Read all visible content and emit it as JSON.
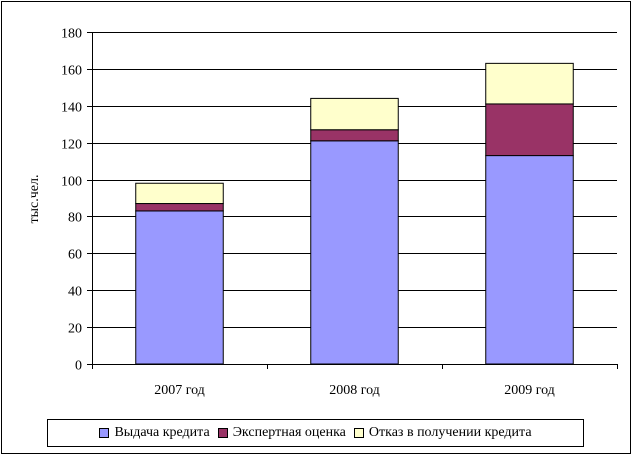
{
  "chart_data": {
    "type": "bar",
    "stacked": true,
    "categories": [
      "2007 год",
      "2008 год",
      "2009 год"
    ],
    "series": [
      {
        "name": "Выдача кредита",
        "values": [
          83,
          121,
          113
        ],
        "color": "#9999ff"
      },
      {
        "name": "Экспертная оценка",
        "values": [
          4,
          6,
          28
        ],
        "color": "#993366"
      },
      {
        "name": "Отказ в получении кредита",
        "values": [
          11,
          17,
          22
        ],
        "color": "#ffffcc"
      }
    ],
    "ylabel": "тыс.чел.",
    "ylim": [
      0,
      180
    ],
    "yticks": [
      0,
      20,
      40,
      60,
      80,
      100,
      120,
      140,
      160,
      180
    ],
    "yticks_labels": [
      "0",
      "20",
      "40",
      "60",
      "80",
      "100",
      "120",
      "140",
      "160",
      "180"
    ],
    "grid": true,
    "legend_position": "bottom"
  }
}
